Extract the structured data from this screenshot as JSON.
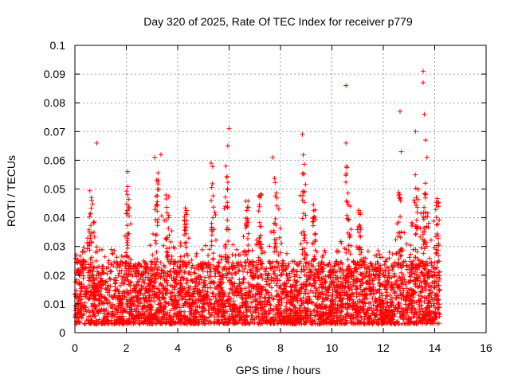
{
  "chart_data": {
    "type": "scatter",
    "title": "Day 320 of 2025, Rate Of TEC Index for receiver p779",
    "xlabel": "GPS time / hours",
    "ylabel": "ROTI / TECUs",
    "xlim": [
      0,
      16
    ],
    "ylim": [
      0,
      0.1
    ],
    "x_ticks": [
      0,
      2,
      4,
      6,
      8,
      10,
      12,
      14,
      16
    ],
    "x_tick_labels": [
      "0",
      "2",
      "4",
      "6",
      "8",
      "10",
      "12",
      "14",
      "16"
    ],
    "y_ticks": [
      0,
      0.01,
      0.02,
      0.03,
      0.04,
      0.05,
      0.06,
      0.07,
      0.08,
      0.09,
      0.1
    ],
    "y_tick_labels": [
      "0",
      "0.01",
      "0.02",
      "0.03",
      "0.04",
      "0.05",
      "0.06",
      "0.07",
      "0.08",
      "0.09",
      "0.1"
    ],
    "grid": true,
    "marker": "+",
    "series_color": "#ff0000",
    "x_data_range": [
      0,
      14.2
    ],
    "y_baseline_band": [
      0.003,
      0.025
    ],
    "notable_points": [
      {
        "x": 0.85,
        "y": 0.066
      },
      {
        "x": 2.05,
        "y": 0.056
      },
      {
        "x": 3.1,
        "y": 0.061
      },
      {
        "x": 3.35,
        "y": 0.062
      },
      {
        "x": 5.3,
        "y": 0.059
      },
      {
        "x": 5.95,
        "y": 0.065
      },
      {
        "x": 6.0,
        "y": 0.071
      },
      {
        "x": 7.7,
        "y": 0.061
      },
      {
        "x": 8.85,
        "y": 0.069
      },
      {
        "x": 10.55,
        "y": 0.086
      },
      {
        "x": 10.55,
        "y": 0.066
      },
      {
        "x": 12.65,
        "y": 0.077
      },
      {
        "x": 12.7,
        "y": 0.063
      },
      {
        "x": 13.25,
        "y": 0.07
      },
      {
        "x": 13.55,
        "y": 0.091
      },
      {
        "x": 13.55,
        "y": 0.087
      },
      {
        "x": 13.6,
        "y": 0.076
      },
      {
        "x": 13.65,
        "y": 0.067
      },
      {
        "x": 13.7,
        "y": 0.061
      }
    ],
    "cluster_peaks": [
      {
        "x": 0.6,
        "y": 0.052
      },
      {
        "x": 2.05,
        "y": 0.051
      },
      {
        "x": 3.2,
        "y": 0.058
      },
      {
        "x": 3.6,
        "y": 0.048
      },
      {
        "x": 4.3,
        "y": 0.045
      },
      {
        "x": 5.35,
        "y": 0.058
      },
      {
        "x": 5.9,
        "y": 0.06
      },
      {
        "x": 6.7,
        "y": 0.048
      },
      {
        "x": 7.2,
        "y": 0.049
      },
      {
        "x": 7.8,
        "y": 0.055
      },
      {
        "x": 8.9,
        "y": 0.063
      },
      {
        "x": 9.3,
        "y": 0.045
      },
      {
        "x": 10.6,
        "y": 0.058
      },
      {
        "x": 11.1,
        "y": 0.046
      },
      {
        "x": 12.65,
        "y": 0.05
      },
      {
        "x": 13.3,
        "y": 0.055
      },
      {
        "x": 13.6,
        "y": 0.052
      },
      {
        "x": 14.1,
        "y": 0.049
      }
    ]
  }
}
